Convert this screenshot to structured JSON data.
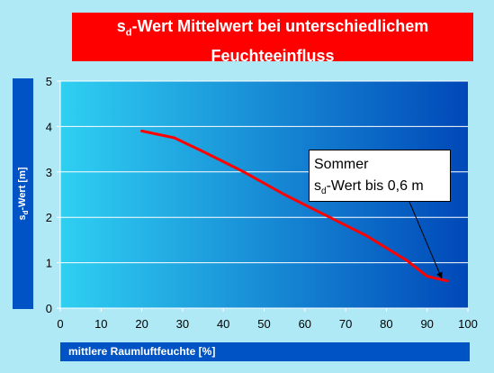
{
  "colors": {
    "page_background": "#aee9f5",
    "title_background": "#ff0000",
    "label_box_background": "#0053c4",
    "plot_gradient_left": "#2fd0f2",
    "plot_gradient_right": "#0048b8",
    "series_line": "#ff0000"
  },
  "title": {
    "line1_symbol": "s",
    "line1_subscript": "d",
    "line1_rest": "-Wert Mittelwert bei unterschiedlichem",
    "line2": "Feuchteeinfluss"
  },
  "y_axis_label": {
    "symbol": "s",
    "subscript": "d",
    "rest": "-Wert [m]"
  },
  "x_axis_label": "mittlere Raumluftfeuchte [%]",
  "annotation": {
    "line1": "Sommer",
    "line2_symbol": "s",
    "line2_subscript": "d",
    "line2_rest": "-Wert bis 0,6 m",
    "points_to": {
      "x": 94,
      "y": 0.6
    }
  },
  "chart_data": {
    "type": "line",
    "xlim": [
      0,
      100
    ],
    "ylim": [
      0,
      5
    ],
    "x_ticks": [
      0,
      10,
      20,
      30,
      40,
      50,
      60,
      70,
      80,
      90,
      100
    ],
    "y_ticks": [
      0,
      1,
      2,
      3,
      4,
      5
    ],
    "grid": true,
    "legend": "none",
    "series": [
      {
        "x": [
          20,
          28,
          35,
          45,
          55,
          65,
          75,
          85,
          90,
          95
        ],
        "y": [
          3.9,
          3.75,
          3.45,
          3.0,
          2.5,
          2.05,
          1.6,
          1.05,
          0.7,
          0.6
        ]
      }
    ]
  }
}
